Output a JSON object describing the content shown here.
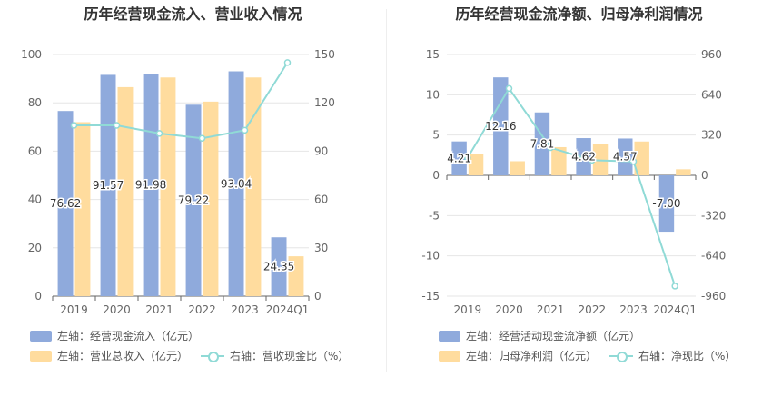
{
  "charts": [
    {
      "title": "历年经营现金流入、营业收入情况",
      "legend": {
        "bar1": "左轴：经营现金流入（亿元）",
        "bar2": "左轴：营业总收入（亿元）",
        "line": "右轴：营收现金比（%）"
      }
    },
    {
      "title": "历年经营现金流净额、归母净利润情况",
      "legend": {
        "bar1": "左轴：经营活动现金流净额（亿元）",
        "bar2": "左轴：归母净利润（亿元）",
        "line": "右轴：净现比（%）"
      }
    }
  ],
  "colors": {
    "bar1": "#8faadc",
    "bar2": "#ffdc9e",
    "line": "#90dad6"
  },
  "chart_data": [
    {
      "type": "bar",
      "title": "历年经营现金流入、营业收入情况",
      "categories": [
        "2019",
        "2020",
        "2021",
        "2022",
        "2023",
        "2024Q1"
      ],
      "series": [
        {
          "name": "左轴：经营现金流入（亿元）",
          "axis": "left",
          "values": [
            76.62,
            91.57,
            91.98,
            79.22,
            93.04,
            24.35
          ],
          "labels": [
            "76.62",
            "91.57",
            "91.98",
            "79.22",
            "93.04",
            "24.35"
          ]
        },
        {
          "name": "左轴：营业总收入（亿元）",
          "axis": "left",
          "values": [
            72,
            86.5,
            90.5,
            80.5,
            90.5,
            16.5
          ]
        },
        {
          "name": "右轴：营收现金比（%）",
          "axis": "right",
          "type": "line",
          "values": [
            106,
            106,
            101,
            98,
            103,
            145
          ]
        }
      ],
      "left_axis": {
        "ylim": [
          0,
          100
        ],
        "ticks": [
          "0",
          "20",
          "40",
          "60",
          "80",
          "100"
        ]
      },
      "right_axis": {
        "ylim": [
          0,
          150
        ],
        "ticks": [
          "0",
          "30",
          "60",
          "90",
          "120",
          "150"
        ]
      },
      "grid": true,
      "legend": "bottom"
    },
    {
      "type": "bar",
      "title": "历年经营现金流净额、归母净利润情况",
      "categories": [
        "2019",
        "2020",
        "2021",
        "2022",
        "2023",
        "2024Q1"
      ],
      "series": [
        {
          "name": "左轴：经营活动现金流净额（亿元）",
          "axis": "left",
          "values": [
            4.21,
            12.16,
            7.81,
            4.62,
            4.57,
            -7.0
          ],
          "labels": [
            "4.21",
            "12.16",
            "7.81",
            "4.62",
            "4.57",
            "-7.00"
          ]
        },
        {
          "name": "左轴：归母净利润（亿元）",
          "axis": "left",
          "values": [
            2.7,
            1.75,
            3.5,
            3.85,
            4.2,
            0.75
          ]
        },
        {
          "name": "右轴：净现比（%）",
          "axis": "right",
          "type": "line",
          "values": [
            140,
            690,
            220,
            120,
            110,
            -880
          ]
        }
      ],
      "left_axis": {
        "ylim": [
          -15,
          15
        ],
        "ticks": [
          "-15",
          "-10",
          "-5",
          "0",
          "5",
          "10",
          "15"
        ]
      },
      "right_axis": {
        "ylim": [
          -960,
          960
        ],
        "ticks": [
          "-960",
          "-640",
          "-320",
          "0",
          "320",
          "640",
          "960"
        ]
      },
      "grid": true,
      "legend": "bottom"
    }
  ]
}
